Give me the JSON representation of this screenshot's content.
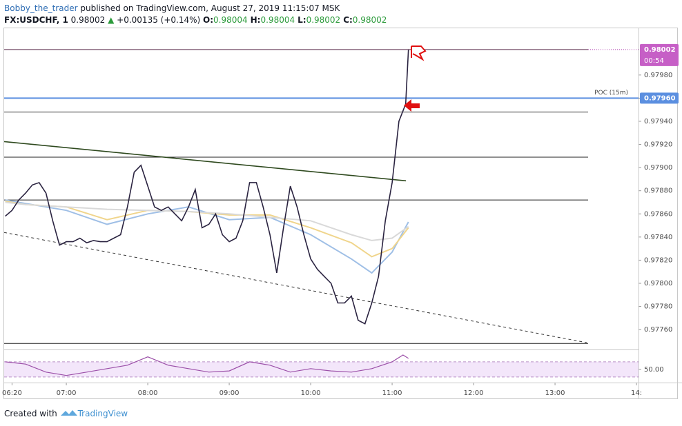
{
  "header": {
    "author": "Bobby_the_trader",
    "published": "published on TradingView.com, August 27, 2019 11:15:07 MSK",
    "symbol": "FX:USDCHF, 1",
    "last": "0.98002",
    "arrow": "▲",
    "change": "+0.00135 (+0.14%)",
    "ohlc": [
      {
        "label": "O:",
        "value": "0.98004"
      },
      {
        "label": "H:",
        "value": "0.98004"
      },
      {
        "label": "L:",
        "value": "0.98002"
      },
      {
        "label": "C:",
        "value": "0.98002"
      }
    ]
  },
  "chart_data": {
    "type": "line",
    "xlim": [
      374.2,
      841.5
    ],
    "ylim": [
      0.97744,
      0.98021
    ],
    "xticks": [
      {
        "value": 380,
        "label": "06:20"
      },
      {
        "value": 420,
        "label": "07:00"
      },
      {
        "value": 480,
        "label": "08:00"
      },
      {
        "value": 540,
        "label": "09:00"
      },
      {
        "value": 600,
        "label": "10:00"
      },
      {
        "value": 660,
        "label": "11:00"
      },
      {
        "value": 720,
        "label": "12:00"
      },
      {
        "value": 780,
        "label": "13:00"
      },
      {
        "value": 840,
        "label": "14:"
      }
    ],
    "yticks": [
      {
        "value": 0.9776,
        "label": "0.97760"
      },
      {
        "value": 0.9778,
        "label": "0.97780"
      },
      {
        "value": 0.978,
        "label": "0.97800"
      },
      {
        "value": 0.9782,
        "label": "0.97820"
      },
      {
        "value": 0.9784,
        "label": "0.97840"
      },
      {
        "value": 0.9786,
        "label": "0.97860"
      },
      {
        "value": 0.9788,
        "label": "0.97880"
      },
      {
        "value": 0.979,
        "label": "0.97900"
      },
      {
        "value": 0.9792,
        "label": "0.97920"
      },
      {
        "value": 0.9794,
        "label": "0.97940"
      },
      {
        "value": 0.9796,
        "label": "0.97960"
      },
      {
        "value": 0.9798,
        "label": "0.97980"
      }
    ],
    "series": [
      {
        "color": "#2a2340",
        "x": [
          375,
          380,
          385,
          390,
          395,
          400,
          405,
          410,
          415,
          420,
          425,
          430,
          435,
          440,
          445,
          450,
          455,
          460,
          465,
          470,
          475,
          480,
          485,
          490,
          495,
          500,
          505,
          510,
          515,
          520,
          525,
          530,
          535,
          540,
          545,
          550,
          555,
          560,
          565,
          570,
          575,
          580,
          585,
          590,
          595,
          600,
          605,
          610,
          615,
          620,
          625,
          630,
          635,
          640,
          645,
          650,
          655,
          660,
          665,
          670,
          672
        ],
        "values": [
          0.97858,
          0.97863,
          0.97872,
          0.97878,
          0.97885,
          0.97887,
          0.97878,
          0.97854,
          0.97833,
          0.97836,
          0.97836,
          0.97839,
          0.97835,
          0.97837,
          0.97836,
          0.97836,
          0.97839,
          0.97842,
          0.97866,
          0.97896,
          0.97902,
          0.97884,
          0.97866,
          0.97863,
          0.97866,
          0.9786,
          0.97854,
          0.97866,
          0.97881,
          0.97848,
          0.97851,
          0.9786,
          0.97842,
          0.97836,
          0.97839,
          0.97854,
          0.97887,
          0.97887,
          0.97866,
          0.97842,
          0.97809,
          0.97848,
          0.97884,
          0.97866,
          0.97842,
          0.97821,
          0.97812,
          0.97806,
          0.978,
          0.97783,
          0.97783,
          0.97789,
          0.97768,
          0.97765,
          0.97783,
          0.97806,
          0.97854,
          0.97887,
          0.9794,
          0.97955,
          0.98002
        ]
      },
      {
        "color": "#d9d9d9",
        "x": [
          375,
          390,
          420,
          450,
          480,
          510,
          540,
          570,
          600,
          630,
          645,
          660,
          672
        ],
        "values": [
          0.9787,
          0.97868,
          0.97866,
          0.97864,
          0.97863,
          0.97862,
          0.9786,
          0.97857,
          0.97854,
          0.97842,
          0.97837,
          0.97839,
          0.97849
        ]
      },
      {
        "color": "#f0d58c",
        "x": [
          375,
          390,
          420,
          450,
          480,
          510,
          540,
          570,
          600,
          630,
          645,
          660,
          672
        ],
        "values": [
          0.97871,
          0.97868,
          0.97866,
          0.97855,
          0.97863,
          0.97862,
          0.97859,
          0.97859,
          0.97848,
          0.97835,
          0.97823,
          0.9783,
          0.97848
        ]
      },
      {
        "color": "#9fbfe6",
        "x": [
          375,
          390,
          420,
          450,
          480,
          510,
          540,
          570,
          600,
          630,
          645,
          660,
          672
        ],
        "values": [
          0.97872,
          0.97869,
          0.97863,
          0.97851,
          0.9786,
          0.97866,
          0.97855,
          0.97857,
          0.97842,
          0.97821,
          0.97809,
          0.97827,
          0.97853
        ]
      }
    ],
    "levels": [
      {
        "value": 0.98002,
        "color": "#5a2a4a"
      },
      {
        "value": 0.9796,
        "color": "#5b8fe0",
        "name": "POC (15m)",
        "label": "0.97960"
      },
      {
        "value": 0.97948,
        "color": "#222"
      },
      {
        "value": 0.97909,
        "color": "#222"
      },
      {
        "value": 0.97872,
        "color": "#222"
      },
      {
        "value": 0.97748,
        "color": "#222"
      }
    ],
    "trendlines": [
      {
        "x": [
          374.2,
          670.2
        ],
        "y": [
          0.979225,
          0.978886
        ],
        "color": "#2f4a1f",
        "dashed": false
      },
      {
        "x": [
          374.2,
          803.4
        ],
        "y": [
          0.978439,
          0.977487
        ],
        "color": "#333",
        "dashed": true
      }
    ],
    "last_price": 0.98002,
    "countdown": "00:54",
    "rsi": {
      "color": "#9b4fa8",
      "ylim": [
        19,
        97
      ],
      "band": [
        30,
        70
      ],
      "yticks": [
        {
          "value": 50,
          "label": "50.00"
        }
      ],
      "x": [
        375,
        390,
        405,
        420,
        435,
        450,
        465,
        480,
        495,
        510,
        525,
        540,
        555,
        570,
        585,
        600,
        615,
        630,
        645,
        660,
        668,
        672
      ],
      "values": [
        70,
        64,
        43,
        34,
        43,
        52,
        61,
        83,
        61,
        52,
        43,
        46,
        70,
        61,
        43,
        52,
        46,
        43,
        52,
        70,
        88,
        79
      ]
    }
  },
  "footer": {
    "created": "Created with",
    "brand": "TradingView"
  }
}
